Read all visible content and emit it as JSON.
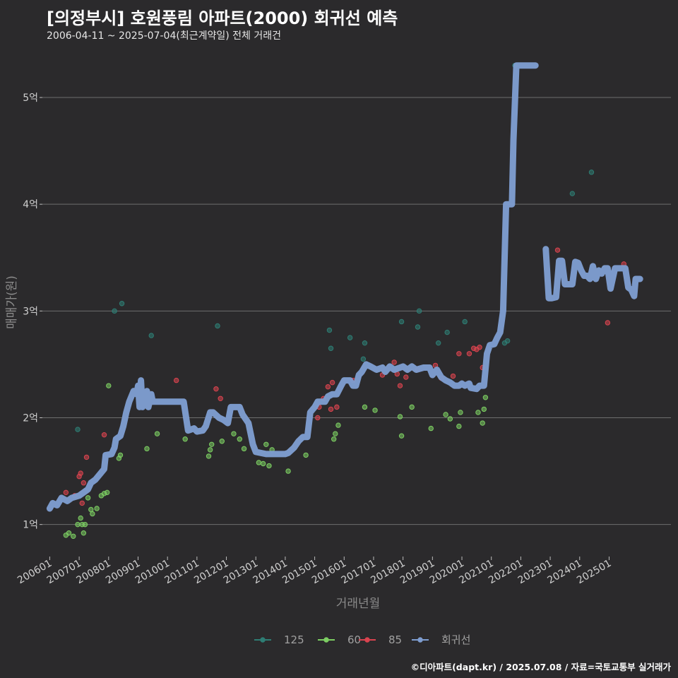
{
  "header": {
    "title": "[의정부시] 호원풍림 아파트(2000) 회귀선 예측",
    "subtitle": "2006-04-11 ~ 2025-07-04(최근계약일) 전체 거래건"
  },
  "footer": {
    "caption": "©디아파트(dapt.kr) / 2025.07.08 / 자료=국토교통부 실거래가"
  },
  "colors": {
    "125": "#2e7d74",
    "60": "#7ccd62",
    "85": "#d9434f",
    "regression": "#7e9dd0",
    "grid": "#6e6e6e"
  },
  "chart_data": {
    "type": "scatter",
    "title": "[의정부시] 호원풍림 아파트(2000) 회귀선 예측",
    "xlabel": "거래년월",
    "ylabel": "매매가(원)",
    "x_unit": "decimal year",
    "xlim": [
      2005.75,
      2027.1
    ],
    "ylim": [
      0.7,
      5.45
    ],
    "y_ticks": [
      {
        "value": 1,
        "label": "1억"
      },
      {
        "value": 2,
        "label": "2억"
      },
      {
        "value": 3,
        "label": "3억"
      },
      {
        "value": 4,
        "label": "4억"
      },
      {
        "value": 5,
        "label": "5억"
      }
    ],
    "x_ticks": [
      {
        "value": 2006,
        "label": "200601"
      },
      {
        "value": 2007,
        "label": "200701"
      },
      {
        "value": 2008,
        "label": "200801"
      },
      {
        "value": 2009,
        "label": "200901"
      },
      {
        "value": 2010,
        "label": "201001"
      },
      {
        "value": 2011,
        "label": "201101"
      },
      {
        "value": 2012,
        "label": "201201"
      },
      {
        "value": 2013,
        "label": "201301"
      },
      {
        "value": 2014,
        "label": "201401"
      },
      {
        "value": 2015,
        "label": "201501"
      },
      {
        "value": 2016,
        "label": "201601"
      },
      {
        "value": 2017,
        "label": "201701"
      },
      {
        "value": 2018,
        "label": "201801"
      },
      {
        "value": 2019,
        "label": "201901"
      },
      {
        "value": 2020,
        "label": "202001"
      },
      {
        "value": 2021,
        "label": "202101"
      },
      {
        "value": 2022,
        "label": "202201"
      },
      {
        "value": 2023,
        "label": "202301"
      },
      {
        "value": 2024,
        "label": "202401"
      },
      {
        "value": 2025,
        "label": "202501"
      }
    ],
    "legend": [
      {
        "key": "125",
        "label": "125"
      },
      {
        "key": "60",
        "label": "60"
      },
      {
        "key": "85",
        "label": "85"
      },
      {
        "key": "regression",
        "label": "회귀선"
      }
    ],
    "series": [
      {
        "name": "125",
        "color_key": "125",
        "points": [
          [
            2006.95,
            1.89
          ],
          [
            2008.2,
            3.0
          ],
          [
            2008.45,
            3.07
          ],
          [
            2009.45,
            2.77
          ],
          [
            2011.7,
            2.86
          ],
          [
            2015.5,
            2.82
          ],
          [
            2015.55,
            2.65
          ],
          [
            2016.2,
            2.75
          ],
          [
            2016.65,
            2.55
          ],
          [
            2016.7,
            2.7
          ],
          [
            2017.95,
            2.9
          ],
          [
            2018.5,
            2.85
          ],
          [
            2018.55,
            3.0
          ],
          [
            2019.2,
            2.7
          ],
          [
            2019.5,
            2.8
          ],
          [
            2020.1,
            2.9
          ],
          [
            2021.45,
            2.7
          ],
          [
            2021.55,
            2.72
          ],
          [
            2021.8,
            5.3
          ],
          [
            2023.75,
            4.1
          ],
          [
            2024.4,
            4.3
          ]
        ]
      },
      {
        "name": "60",
        "color_key": "60",
        "points": [
          [
            2006.55,
            0.9
          ],
          [
            2006.65,
            0.92
          ],
          [
            2006.8,
            0.89
          ],
          [
            2006.95,
            1.0
          ],
          [
            2007.05,
            1.06
          ],
          [
            2007.1,
            1.0
          ],
          [
            2007.15,
            0.92
          ],
          [
            2007.2,
            1.0
          ],
          [
            2007.3,
            1.25
          ],
          [
            2007.4,
            1.14
          ],
          [
            2007.45,
            1.1
          ],
          [
            2007.6,
            1.15
          ],
          [
            2007.75,
            1.27
          ],
          [
            2007.85,
            1.29
          ],
          [
            2007.95,
            1.3
          ],
          [
            2008.0,
            2.3
          ],
          [
            2008.35,
            1.62
          ],
          [
            2008.4,
            1.65
          ],
          [
            2009.3,
            1.71
          ],
          [
            2009.65,
            1.85
          ],
          [
            2010.6,
            1.8
          ],
          [
            2011.4,
            1.64
          ],
          [
            2011.45,
            1.7
          ],
          [
            2011.5,
            1.75
          ],
          [
            2011.85,
            1.78
          ],
          [
            2012.25,
            1.85
          ],
          [
            2012.45,
            1.8
          ],
          [
            2012.6,
            1.71
          ],
          [
            2013.1,
            1.58
          ],
          [
            2013.25,
            1.57
          ],
          [
            2013.35,
            1.75
          ],
          [
            2013.45,
            1.55
          ],
          [
            2013.55,
            1.7
          ],
          [
            2014.1,
            1.5
          ],
          [
            2014.7,
            1.65
          ],
          [
            2015.65,
            1.8
          ],
          [
            2015.7,
            1.85
          ],
          [
            2015.8,
            1.93
          ],
          [
            2016.7,
            2.1
          ],
          [
            2017.05,
            2.07
          ],
          [
            2017.9,
            2.01
          ],
          [
            2017.95,
            1.83
          ],
          [
            2018.3,
            2.1
          ],
          [
            2018.95,
            1.9
          ],
          [
            2019.45,
            2.03
          ],
          [
            2019.6,
            1.99
          ],
          [
            2019.9,
            1.92
          ],
          [
            2019.95,
            2.05
          ],
          [
            2020.55,
            2.05
          ],
          [
            2020.7,
            1.95
          ],
          [
            2020.75,
            2.08
          ],
          [
            2020.8,
            2.19
          ]
        ]
      },
      {
        "name": "85",
        "color_key": "85",
        "points": [
          [
            2006.55,
            1.3
          ],
          [
            2006.85,
            1.27
          ],
          [
            2007.0,
            1.45
          ],
          [
            2007.05,
            1.48
          ],
          [
            2007.1,
            1.2
          ],
          [
            2007.15,
            1.39
          ],
          [
            2007.25,
            1.63
          ],
          [
            2007.85,
            1.84
          ],
          [
            2010.3,
            2.35
          ],
          [
            2011.65,
            2.27
          ],
          [
            2011.8,
            2.18
          ],
          [
            2015.1,
            2.0
          ],
          [
            2015.15,
            2.1
          ],
          [
            2015.3,
            2.18
          ],
          [
            2015.45,
            2.29
          ],
          [
            2015.55,
            2.08
          ],
          [
            2015.6,
            2.33
          ],
          [
            2015.75,
            2.1
          ],
          [
            2016.3,
            2.35
          ],
          [
            2017.3,
            2.4
          ],
          [
            2017.7,
            2.52
          ],
          [
            2017.8,
            2.41
          ],
          [
            2017.9,
            2.3
          ],
          [
            2018.1,
            2.38
          ],
          [
            2018.5,
            2.45
          ],
          [
            2019.1,
            2.49
          ],
          [
            2019.3,
            2.37
          ],
          [
            2019.7,
            2.39
          ],
          [
            2019.9,
            2.6
          ],
          [
            2020.25,
            2.6
          ],
          [
            2020.4,
            2.65
          ],
          [
            2020.5,
            2.64
          ],
          [
            2020.6,
            2.66
          ],
          [
            2020.7,
            2.47
          ],
          [
            2023.25,
            3.57
          ],
          [
            2024.95,
            2.89
          ],
          [
            2025.5,
            3.44
          ]
        ]
      }
    ],
    "regression_line": {
      "name": "회귀선",
      "color_key": "regression",
      "segments": [
        [
          [
            2006.0,
            1.15
          ],
          [
            2006.1,
            1.2
          ],
          [
            2006.25,
            1.18
          ],
          [
            2006.4,
            1.25
          ],
          [
            2006.6,
            1.22
          ],
          [
            2006.75,
            1.25
          ],
          [
            2007.0,
            1.27
          ],
          [
            2007.15,
            1.3
          ],
          [
            2007.3,
            1.33
          ],
          [
            2007.4,
            1.39
          ],
          [
            2007.55,
            1.42
          ],
          [
            2007.7,
            1.47
          ],
          [
            2007.85,
            1.52
          ],
          [
            2007.9,
            1.65
          ],
          [
            2008.1,
            1.66
          ],
          [
            2008.2,
            1.72
          ],
          [
            2008.25,
            1.8
          ],
          [
            2008.4,
            1.83
          ],
          [
            2008.5,
            1.92
          ],
          [
            2008.6,
            2.05
          ],
          [
            2008.7,
            2.15
          ],
          [
            2008.85,
            2.25
          ],
          [
            2008.95,
            2.22
          ],
          [
            2009.0,
            2.3
          ],
          [
            2009.05,
            2.1
          ],
          [
            2009.1,
            2.35
          ],
          [
            2009.15,
            2.1
          ],
          [
            2009.2,
            2.2
          ],
          [
            2009.25,
            2.12
          ],
          [
            2009.3,
            2.25
          ],
          [
            2009.35,
            2.1
          ],
          [
            2009.45,
            2.22
          ],
          [
            2009.5,
            2.15
          ],
          [
            2010.2,
            2.15
          ],
          [
            2010.55,
            2.15
          ],
          [
            2010.7,
            1.88
          ],
          [
            2010.9,
            1.9
          ],
          [
            2011.0,
            1.87
          ],
          [
            2011.2,
            1.88
          ],
          [
            2011.3,
            1.92
          ],
          [
            2011.45,
            2.05
          ],
          [
            2011.55,
            2.05
          ],
          [
            2011.75,
            2.0
          ],
          [
            2011.9,
            1.98
          ],
          [
            2012.05,
            1.95
          ],
          [
            2012.15,
            2.1
          ],
          [
            2012.45,
            2.1
          ],
          [
            2012.55,
            2.03
          ],
          [
            2012.75,
            1.95
          ],
          [
            2012.9,
            1.75
          ],
          [
            2013.0,
            1.68
          ],
          [
            2013.35,
            1.66
          ],
          [
            2014.0,
            1.66
          ],
          [
            2014.1,
            1.67
          ],
          [
            2014.3,
            1.72
          ],
          [
            2014.45,
            1.78
          ],
          [
            2014.6,
            1.82
          ],
          [
            2014.75,
            1.82
          ],
          [
            2014.85,
            2.05
          ],
          [
            2015.0,
            2.1
          ],
          [
            2015.1,
            2.15
          ],
          [
            2015.3,
            2.15
          ],
          [
            2015.35,
            2.15
          ],
          [
            2015.45,
            2.2
          ],
          [
            2015.6,
            2.22
          ],
          [
            2015.75,
            2.22
          ],
          [
            2015.9,
            2.3
          ],
          [
            2016.0,
            2.35
          ],
          [
            2016.2,
            2.35
          ],
          [
            2016.3,
            2.3
          ],
          [
            2016.4,
            2.3
          ],
          [
            2016.5,
            2.4
          ],
          [
            2016.6,
            2.43
          ],
          [
            2016.75,
            2.5
          ],
          [
            2016.9,
            2.48
          ],
          [
            2017.1,
            2.45
          ],
          [
            2017.3,
            2.47
          ],
          [
            2017.4,
            2.43
          ],
          [
            2017.55,
            2.48
          ],
          [
            2017.7,
            2.45
          ],
          [
            2017.9,
            2.47
          ],
          [
            2018.0,
            2.48
          ],
          [
            2018.15,
            2.45
          ],
          [
            2018.3,
            2.48
          ],
          [
            2018.45,
            2.45
          ],
          [
            2018.7,
            2.47
          ],
          [
            2018.9,
            2.47
          ],
          [
            2019.0,
            2.4
          ],
          [
            2019.15,
            2.45
          ],
          [
            2019.3,
            2.38
          ],
          [
            2019.45,
            2.35
          ],
          [
            2019.6,
            2.33
          ],
          [
            2019.75,
            2.3
          ],
          [
            2019.9,
            2.3
          ],
          [
            2020.0,
            2.32
          ],
          [
            2020.1,
            2.3
          ],
          [
            2020.25,
            2.32
          ],
          [
            2020.3,
            2.28
          ],
          [
            2020.5,
            2.27
          ],
          [
            2020.6,
            2.3
          ],
          [
            2020.75,
            2.3
          ],
          [
            2020.85,
            2.6
          ],
          [
            2020.95,
            2.68
          ],
          [
            2021.1,
            2.69
          ],
          [
            2021.2,
            2.75
          ],
          [
            2021.3,
            2.8
          ],
          [
            2021.4,
            3.0
          ],
          [
            2021.45,
            3.5
          ],
          [
            2021.5,
            4.0
          ],
          [
            2021.7,
            4.0
          ],
          [
            2021.75,
            4.6
          ],
          [
            2021.85,
            5.3
          ],
          [
            2022.5,
            5.3
          ]
        ],
        [
          [
            2022.85,
            3.58
          ],
          [
            2022.95,
            3.12
          ],
          [
            2023.05,
            3.12
          ],
          [
            2023.2,
            3.13
          ],
          [
            2023.3,
            3.47
          ],
          [
            2023.4,
            3.47
          ],
          [
            2023.5,
            3.25
          ],
          [
            2023.6,
            3.25
          ],
          [
            2023.75,
            3.25
          ],
          [
            2023.85,
            3.46
          ],
          [
            2023.95,
            3.45
          ],
          [
            2024.05,
            3.38
          ],
          [
            2024.15,
            3.33
          ],
          [
            2024.25,
            3.33
          ],
          [
            2024.35,
            3.3
          ],
          [
            2024.45,
            3.42
          ],
          [
            2024.55,
            3.3
          ],
          [
            2024.65,
            3.38
          ],
          [
            2024.75,
            3.35
          ],
          [
            2024.85,
            3.4
          ],
          [
            2024.95,
            3.4
          ],
          [
            2025.05,
            3.21
          ],
          [
            2025.2,
            3.4
          ],
          [
            2025.3,
            3.4
          ],
          [
            2025.45,
            3.4
          ],
          [
            2025.55,
            3.4
          ],
          [
            2025.65,
            3.22
          ],
          [
            2025.75,
            3.2
          ],
          [
            2025.85,
            3.14
          ],
          [
            2025.9,
            3.3
          ],
          [
            2026.05,
            3.3
          ]
        ]
      ]
    }
  }
}
